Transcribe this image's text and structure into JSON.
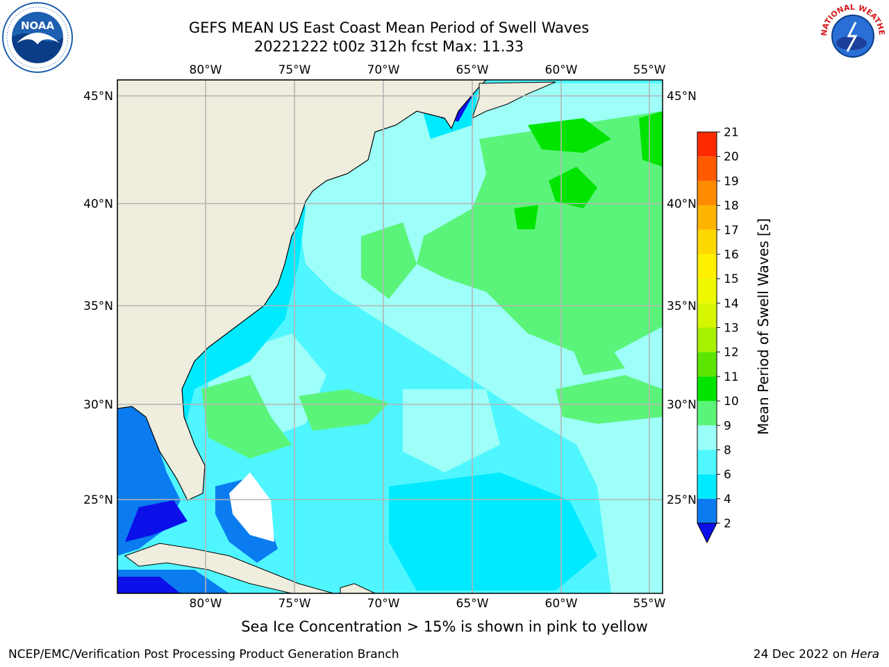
{
  "title": {
    "line1": "GEFS MEAN US East Coast Mean Period of Swell Waves",
    "line2": "20221222 t00z 312h fcst   Max: 11.33"
  },
  "logos": {
    "noaa": {
      "text": "NOAA",
      "ring_text": "NATIONAL OCEANIC AND ATMOSPHERIC ADMINISTRATION · U.S. DEPARTMENT OF COMMERCE",
      "color": "#1d5fb0"
    },
    "nws": {
      "ring_text": "NATIONAL WEATHER SERVICE",
      "color": "#d7191c"
    }
  },
  "map": {
    "lon_labels": [
      "80°W",
      "75°W",
      "70°W",
      "65°W",
      "60°W",
      "55°W"
    ],
    "lat_labels": [
      "45°N",
      "40°N",
      "35°N",
      "30°N",
      "25°N"
    ],
    "land_color": "#efedde",
    "grid_color": "#b4b4b4"
  },
  "colorbar": {
    "title": "Mean Period of Swell Waves [s]",
    "ticks": [
      "2",
      "4",
      "6",
      "8",
      "9",
      "10",
      "11",
      "12",
      "13",
      "14",
      "15",
      "16",
      "17",
      "18",
      "19",
      "20",
      "21"
    ],
    "colors": [
      "#0a7cf0",
      "#00eaff",
      "#50f7ff",
      "#9afff9",
      "#5bf47a",
      "#00e400",
      "#5ce500",
      "#a7f100",
      "#d6f600",
      "#eef900",
      "#fff100",
      "#ffd800",
      "#ffb400",
      "#ff8c00",
      "#ff5a00",
      "#ff2a00"
    ],
    "under_color": "#0c10e8"
  },
  "caption": "Sea Ice Concentration > 15% is shown in pink to yellow",
  "footer": {
    "left": "NCEP/EMC/Verification Post Processing Product Generation Branch",
    "right_date": "24 Dec 2022 on ",
    "right_host": "Hera"
  }
}
